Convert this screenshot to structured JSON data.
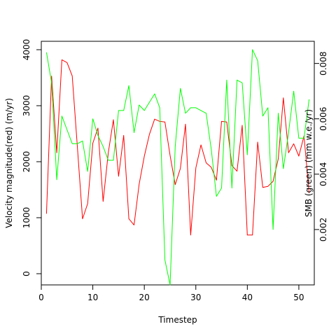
{
  "chart_data": {
    "type": "line",
    "title": "",
    "xlabel": "Timestep",
    "ylabel_left": "Velocity magnitude(red) (m/yr)",
    "ylabel_right": "SMB (green) (mm w.e./yr)",
    "xlim": [
      0,
      53
    ],
    "ylim_left": [
      -200,
      4150
    ],
    "ylim_right": [
      0.0,
      0.0088
    ],
    "x_ticks": [
      0,
      10,
      20,
      30,
      40,
      50
    ],
    "y_ticks_left": [
      0,
      1000,
      2000,
      3000,
      4000
    ],
    "y_ticks_right": [
      0.002,
      0.004,
      0.006,
      0.008
    ],
    "y_tick_labels_right": [
      "0.002",
      "0.004",
      "0.006",
      "0.008"
    ],
    "grid": false,
    "legend": "none",
    "series": [
      {
        "axis": "left",
        "color": "#ff0000",
        "x": [
          1,
          2,
          3,
          4,
          5,
          6,
          7,
          8,
          9,
          10,
          11,
          12,
          13,
          14,
          15,
          16,
          17,
          18,
          19,
          20,
          21,
          22,
          23,
          24,
          25,
          26,
          27,
          28,
          29,
          30,
          31,
          32,
          33,
          34,
          35,
          36,
          37,
          38,
          39,
          40,
          41,
          42,
          43,
          44,
          45,
          46,
          47,
          48,
          49,
          50,
          51,
          52
        ],
        "values": [
          1070,
          3530,
          2160,
          3820,
          3770,
          3530,
          2270,
          980,
          1250,
          2330,
          2600,
          1290,
          2160,
          2750,
          1740,
          2470,
          980,
          870,
          1600,
          2100,
          2490,
          2760,
          2720,
          2710,
          2110,
          1590,
          1880,
          2670,
          690,
          1890,
          2300,
          1980,
          1900,
          1670,
          2720,
          2710,
          1930,
          1830,
          2650,
          690,
          690,
          2350,
          1540,
          1560,
          1650,
          2050,
          3140,
          2160,
          2320,
          2100,
          2460,
          1440
        ]
      },
      {
        "axis": "right",
        "color": "#00ff00",
        "x": [
          1,
          2,
          3,
          4,
          5,
          6,
          7,
          8,
          9,
          10,
          11,
          12,
          13,
          14,
          15,
          16,
          17,
          18,
          19,
          20,
          21,
          22,
          23,
          24,
          25,
          26,
          27,
          28,
          29,
          30,
          31,
          32,
          33,
          34,
          35,
          36,
          37,
          38,
          39,
          40,
          41,
          42,
          43,
          44,
          45,
          46,
          47,
          48,
          49,
          50,
          51,
          52
        ],
        "values": [
          0.0084,
          0.0073,
          0.0038,
          0.0061,
          0.0056,
          0.0051,
          0.0051,
          0.0052,
          0.0041,
          0.006,
          0.0054,
          0.005,
          0.0045,
          0.0045,
          0.0063,
          0.0063,
          0.0072,
          0.0055,
          0.0065,
          0.0063,
          0.0066,
          0.0069,
          0.0064,
          0.0009,
          0.0,
          0.005,
          0.0071,
          0.0062,
          0.0064,
          0.0064,
          0.0063,
          0.0062,
          0.0049,
          0.0032,
          0.0035,
          0.0074,
          0.0035,
          0.0074,
          0.0073,
          0.0047,
          0.0085,
          0.0081,
          0.0061,
          0.0064,
          0.002,
          0.0062,
          0.0042,
          0.0055,
          0.007,
          0.0053,
          0.0053,
          0.0067
        ]
      }
    ]
  }
}
